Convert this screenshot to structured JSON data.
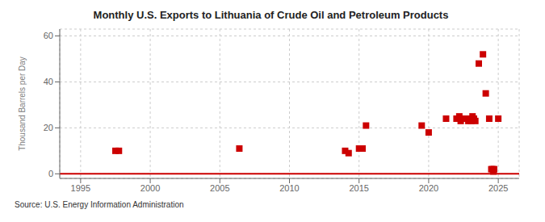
{
  "chart_data": {
    "type": "scatter",
    "title": "Monthly U.S. Exports to Lithuania of Crude Oil and Petroleum Products",
    "ylabel": "Thousand Barrels per Day",
    "source": "Source: U.S. Energy Information Administration",
    "color": "#cc0000",
    "marker": "square",
    "grid": true,
    "baseline": 0,
    "xlim": [
      1993.5,
      2026.5
    ],
    "ylim": [
      -2,
      63
    ],
    "xticks": [
      1995,
      2000,
      2005,
      2010,
      2015,
      2020,
      2025
    ],
    "yticks": [
      0,
      20,
      40,
      60
    ],
    "x": [
      1997.5,
      1997.75,
      2006.4,
      2014.0,
      2014.25,
      2015.0,
      2015.25,
      2015.5,
      2019.5,
      2020.0,
      2021.25,
      2022.0,
      2022.1,
      2022.2,
      2022.3,
      2022.4,
      2022.75,
      2022.85,
      2022.95,
      2023.05,
      2023.15,
      2023.25,
      2023.35,
      2023.6,
      2023.9,
      2024.1,
      2024.35,
      2024.5,
      2024.6,
      2024.65,
      2024.7,
      2025.0
    ],
    "values": [
      10,
      10,
      11,
      10,
      9,
      11,
      11,
      21,
      21,
      18,
      24,
      24,
      24,
      25,
      23,
      24,
      24,
      23,
      24,
      23,
      25,
      24,
      23,
      48,
      52,
      35,
      24,
      2,
      2,
      1,
      2,
      24
    ]
  }
}
